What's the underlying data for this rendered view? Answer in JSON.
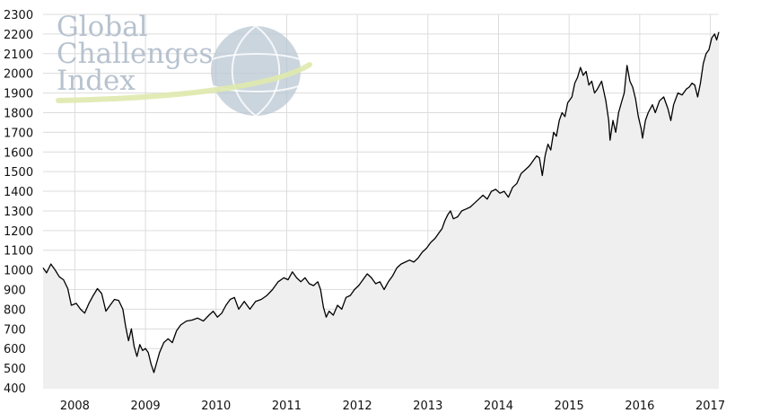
{
  "watermark": {
    "lines": [
      "Global",
      "Challenges",
      "Index"
    ],
    "text_color": "#b7c2cf",
    "globe_color": "#b9c7d3",
    "swoosh_color": "#dfe9ad"
  },
  "colors": {
    "line": "#000000",
    "area_fill": "#efefef",
    "grid": "#dcdcdc",
    "background": "#ffffff"
  },
  "chart_data": {
    "type": "area",
    "title": "",
    "xlabel": "",
    "ylabel": "",
    "grid": true,
    "legend": "none",
    "xlim": [
      2007.55,
      2017.12
    ],
    "ylim": [
      400,
      2300
    ],
    "y_ticks": [
      400,
      500,
      600,
      700,
      800,
      900,
      1000,
      1100,
      1200,
      1300,
      1400,
      1500,
      1600,
      1700,
      1800,
      1900,
      2000,
      2100,
      2200,
      2300
    ],
    "x_ticks": [
      {
        "label": "2008",
        "x": 2008
      },
      {
        "label": "2009",
        "x": 2009
      },
      {
        "label": "2010",
        "x": 2010
      },
      {
        "label": "2011",
        "x": 2011
      },
      {
        "label": "2012",
        "x": 2012
      },
      {
        "label": "2013",
        "x": 2013
      },
      {
        "label": "2014",
        "x": 2014
      },
      {
        "label": "2015",
        "x": 2015
      },
      {
        "label": "2016",
        "x": 2016
      },
      {
        "label": "2017",
        "x": 2017
      }
    ],
    "series": [
      {
        "points": [
          [
            2007.55,
            1010
          ],
          [
            2007.6,
            985
          ],
          [
            2007.66,
            1030
          ],
          [
            2007.72,
            1000
          ],
          [
            2007.78,
            965
          ],
          [
            2007.84,
            950
          ],
          [
            2007.9,
            905
          ],
          [
            2007.95,
            820
          ],
          [
            2008.02,
            830
          ],
          [
            2008.08,
            800
          ],
          [
            2008.14,
            780
          ],
          [
            2008.2,
            830
          ],
          [
            2008.26,
            870
          ],
          [
            2008.32,
            905
          ],
          [
            2008.38,
            880
          ],
          [
            2008.44,
            790
          ],
          [
            2008.5,
            820
          ],
          [
            2008.56,
            850
          ],
          [
            2008.62,
            845
          ],
          [
            2008.68,
            800
          ],
          [
            2008.72,
            710
          ],
          [
            2008.76,
            640
          ],
          [
            2008.8,
            700
          ],
          [
            2008.84,
            610
          ],
          [
            2008.88,
            560
          ],
          [
            2008.92,
            620
          ],
          [
            2008.96,
            590
          ],
          [
            2009.0,
            600
          ],
          [
            2009.04,
            580
          ],
          [
            2009.08,
            520
          ],
          [
            2009.12,
            478
          ],
          [
            2009.16,
            530
          ],
          [
            2009.2,
            580
          ],
          [
            2009.26,
            630
          ],
          [
            2009.32,
            650
          ],
          [
            2009.38,
            630
          ],
          [
            2009.44,
            690
          ],
          [
            2009.5,
            720
          ],
          [
            2009.58,
            740
          ],
          [
            2009.66,
            745
          ],
          [
            2009.74,
            755
          ],
          [
            2009.82,
            740
          ],
          [
            2009.9,
            770
          ],
          [
            2009.96,
            790
          ],
          [
            2010.02,
            760
          ],
          [
            2010.08,
            780
          ],
          [
            2010.14,
            820
          ],
          [
            2010.2,
            850
          ],
          [
            2010.26,
            860
          ],
          [
            2010.32,
            800
          ],
          [
            2010.4,
            840
          ],
          [
            2010.48,
            800
          ],
          [
            2010.56,
            840
          ],
          [
            2010.64,
            850
          ],
          [
            2010.72,
            870
          ],
          [
            2010.8,
            900
          ],
          [
            2010.88,
            940
          ],
          [
            2010.96,
            960
          ],
          [
            2011.02,
            950
          ],
          [
            2011.08,
            990
          ],
          [
            2011.14,
            960
          ],
          [
            2011.2,
            940
          ],
          [
            2011.26,
            960
          ],
          [
            2011.32,
            930
          ],
          [
            2011.38,
            920
          ],
          [
            2011.44,
            940
          ],
          [
            2011.48,
            900
          ],
          [
            2011.52,
            810
          ],
          [
            2011.56,
            760
          ],
          [
            2011.6,
            790
          ],
          [
            2011.66,
            770
          ],
          [
            2011.72,
            820
          ],
          [
            2011.78,
            800
          ],
          [
            2011.84,
            860
          ],
          [
            2011.9,
            870
          ],
          [
            2011.96,
            900
          ],
          [
            2012.02,
            920
          ],
          [
            2012.08,
            950
          ],
          [
            2012.14,
            980
          ],
          [
            2012.2,
            960
          ],
          [
            2012.26,
            930
          ],
          [
            2012.32,
            940
          ],
          [
            2012.38,
            900
          ],
          [
            2012.44,
            940
          ],
          [
            2012.5,
            970
          ],
          [
            2012.56,
            1010
          ],
          [
            2012.62,
            1030
          ],
          [
            2012.68,
            1040
          ],
          [
            2012.74,
            1050
          ],
          [
            2012.8,
            1040
          ],
          [
            2012.86,
            1060
          ],
          [
            2012.92,
            1090
          ],
          [
            2012.98,
            1110
          ],
          [
            2013.04,
            1140
          ],
          [
            2013.1,
            1160
          ],
          [
            2013.16,
            1190
          ],
          [
            2013.2,
            1210
          ],
          [
            2013.24,
            1250
          ],
          [
            2013.28,
            1280
          ],
          [
            2013.32,
            1300
          ],
          [
            2013.36,
            1260
          ],
          [
            2013.42,
            1270
          ],
          [
            2013.48,
            1300
          ],
          [
            2013.54,
            1310
          ],
          [
            2013.6,
            1320
          ],
          [
            2013.66,
            1340
          ],
          [
            2013.72,
            1360
          ],
          [
            2013.78,
            1380
          ],
          [
            2013.84,
            1360
          ],
          [
            2013.9,
            1400
          ],
          [
            2013.96,
            1410
          ],
          [
            2014.02,
            1390
          ],
          [
            2014.08,
            1400
          ],
          [
            2014.14,
            1370
          ],
          [
            2014.2,
            1420
          ],
          [
            2014.26,
            1440
          ],
          [
            2014.32,
            1490
          ],
          [
            2014.38,
            1510
          ],
          [
            2014.44,
            1530
          ],
          [
            2014.5,
            1560
          ],
          [
            2014.54,
            1580
          ],
          [
            2014.58,
            1570
          ],
          [
            2014.62,
            1480
          ],
          [
            2014.66,
            1580
          ],
          [
            2014.7,
            1640
          ],
          [
            2014.74,
            1610
          ],
          [
            2014.78,
            1700
          ],
          [
            2014.82,
            1680
          ],
          [
            2014.86,
            1760
          ],
          [
            2014.9,
            1800
          ],
          [
            2014.94,
            1780
          ],
          [
            2014.98,
            1850
          ],
          [
            2015.04,
            1880
          ],
          [
            2015.08,
            1950
          ],
          [
            2015.12,
            1980
          ],
          [
            2015.16,
            2030
          ],
          [
            2015.2,
            1990
          ],
          [
            2015.24,
            2010
          ],
          [
            2015.28,
            1940
          ],
          [
            2015.32,
            1960
          ],
          [
            2015.36,
            1900
          ],
          [
            2015.4,
            1920
          ],
          [
            2015.46,
            1960
          ],
          [
            2015.52,
            1860
          ],
          [
            2015.56,
            1760
          ],
          [
            2015.58,
            1660
          ],
          [
            2015.62,
            1760
          ],
          [
            2015.66,
            1700
          ],
          [
            2015.7,
            1800
          ],
          [
            2015.74,
            1850
          ],
          [
            2015.78,
            1900
          ],
          [
            2015.82,
            2040
          ],
          [
            2015.86,
            1960
          ],
          [
            2015.9,
            1930
          ],
          [
            2015.94,
            1870
          ],
          [
            2015.98,
            1780
          ],
          [
            2016.02,
            1720
          ],
          [
            2016.04,
            1670
          ],
          [
            2016.08,
            1760
          ],
          [
            2016.12,
            1800
          ],
          [
            2016.18,
            1840
          ],
          [
            2016.22,
            1800
          ],
          [
            2016.28,
            1860
          ],
          [
            2016.34,
            1880
          ],
          [
            2016.4,
            1820
          ],
          [
            2016.44,
            1760
          ],
          [
            2016.48,
            1840
          ],
          [
            2016.54,
            1900
          ],
          [
            2016.6,
            1890
          ],
          [
            2016.66,
            1920
          ],
          [
            2016.7,
            1930
          ],
          [
            2016.74,
            1950
          ],
          [
            2016.78,
            1940
          ],
          [
            2016.82,
            1880
          ],
          [
            2016.86,
            1950
          ],
          [
            2016.9,
            2050
          ],
          [
            2016.94,
            2100
          ],
          [
            2016.98,
            2120
          ],
          [
            2017.02,
            2180
          ],
          [
            2017.06,
            2200
          ],
          [
            2017.09,
            2170
          ],
          [
            2017.12,
            2210
          ]
        ]
      }
    ]
  }
}
